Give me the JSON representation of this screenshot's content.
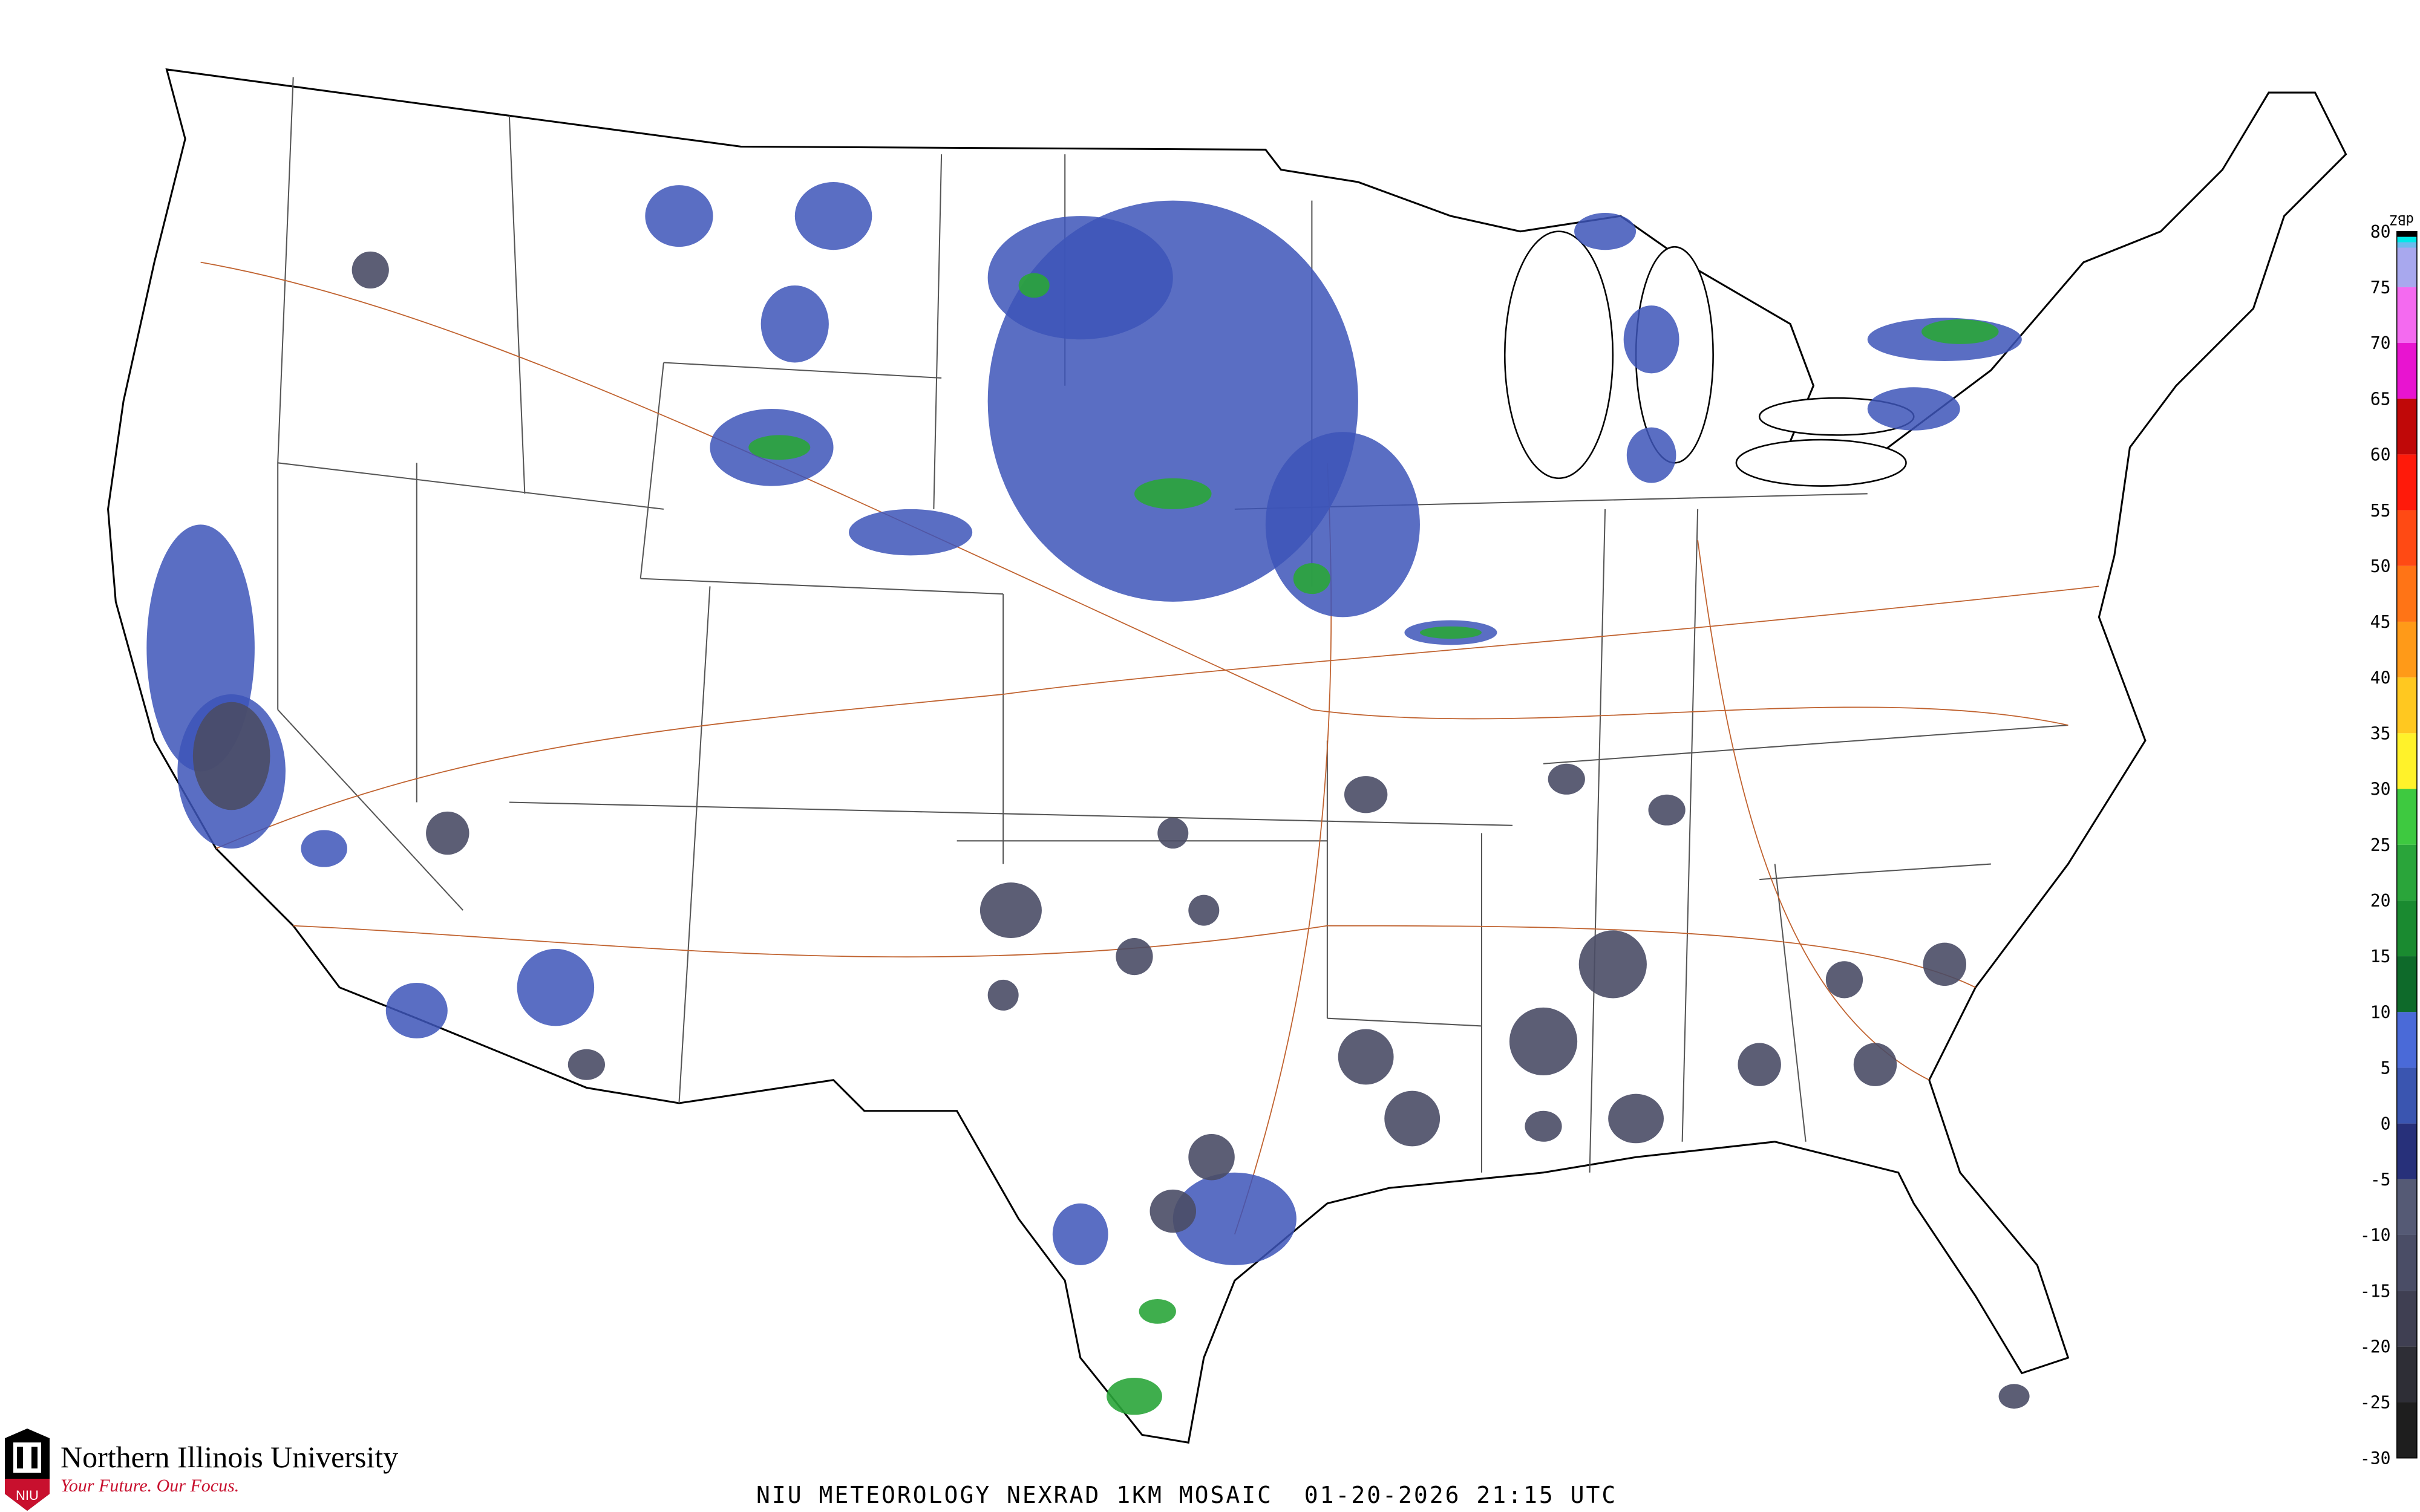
{
  "title": "NIU METEOROLOGY NEXRAD 1KM MOSAIC  01-20-2026 21:15 UTC",
  "logo": {
    "name": "Northern Illinois University",
    "tagline": "Your Future. Our Focus.",
    "badge": "NIU",
    "brand_color": "#c8102e"
  },
  "colorbar": {
    "unit": "dBZ",
    "ticks": [
      "80",
      "75",
      "70",
      "65",
      "60",
      "55",
      "50",
      "45",
      "40",
      "35",
      "30",
      "25",
      "20",
      "15",
      "10",
      "5",
      "0",
      "-5",
      "-10",
      "-15",
      "-20",
      "-25",
      "-30"
    ],
    "range": [
      -30,
      80
    ],
    "colors_bottom_to_top": [
      "#1e1e1e",
      "#2e2e36",
      "#3f3f52",
      "#4a4d66",
      "#555a75",
      "#27307a",
      "#3a55b0",
      "#4a6ad8",
      "#0e6a2a",
      "#1a8a30",
      "#2aa53a",
      "#3ec940",
      "#fff22a",
      "#ffc820",
      "#ff9a18",
      "#ff7416",
      "#ff4a14",
      "#ff1a0a",
      "#c00808",
      "#e814d0",
      "#f46af0",
      "#a8a8ee"
    ],
    "top_colors": [
      "#6bbcee",
      "#00e8e8",
      "#000000"
    ]
  },
  "map_colors": {
    "coast": "#000000",
    "state": "#555555",
    "county": "#c8c8c8",
    "highway": "#c0622f",
    "echo_light": "#3d55b8",
    "echo_dark": "#4a4d66",
    "echo_green": "#2aa53a"
  }
}
